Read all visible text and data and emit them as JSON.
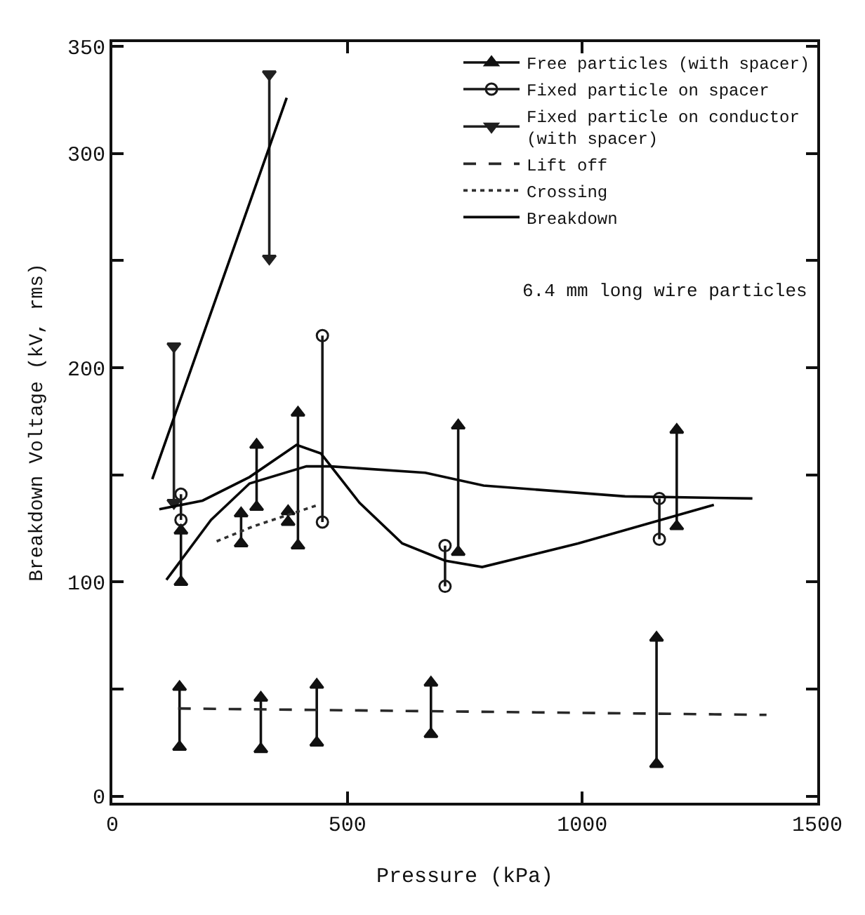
{
  "chart_data": {
    "type": "line",
    "xlabel": "Pressure (kPa)",
    "ylabel": "Breakdown Voltage (kV, rms)",
    "xlim": [
      0,
      1500
    ],
    "xticks": [
      0,
      500,
      1000,
      1500
    ],
    "ylim": [
      -3,
      352
    ],
    "yticks": [
      0,
      {
        "value": 50,
        "label": null
      },
      100,
      {
        "value": 150,
        "label": null
      },
      200,
      {
        "value": 250,
        "label": null
      },
      300,
      350
    ],
    "legend": "top right",
    "annotations": [
      "6.4 mm long wire particles"
    ],
    "series": [
      {
        "name": "Free particles (with spacer)",
        "color": "#111111",
        "marker": "triangle",
        "line_style": "solid",
        "x": [
          143,
          143,
          null,
          146,
          146,
          null,
          274,
          274,
          null,
          307,
          307,
          null,
          316,
          316,
          null,
          374,
          374,
          null,
          395,
          395,
          null,
          435,
          435,
          null,
          678,
          678,
          null,
          736,
          736,
          null,
          1158,
          1158,
          null,
          1201,
          1201
        ],
        "values": [
          23,
          51,
          null,
          100,
          124,
          null,
          118,
          132,
          null,
          135,
          164,
          null,
          22,
          46,
          null,
          128,
          133,
          null,
          117,
          179,
          null,
          25,
          52,
          null,
          29,
          53,
          null,
          114,
          173,
          null,
          15,
          74,
          null,
          126,
          171
        ]
      },
      {
        "name": "Fixed particle on spacer",
        "color": "#181818",
        "marker": "circle",
        "line_style": "solid",
        "x": [
          146,
          146,
          null,
          447,
          447,
          null,
          708,
          708,
          null,
          1164,
          1164
        ],
        "values": [
          129,
          141,
          null,
          128,
          215,
          null,
          98,
          117,
          null,
          120,
          139
        ]
      },
      {
        "name": "Fixed particle on conductor\n(with spacer)",
        "color": "#202020",
        "marker": "triangle-down",
        "line_style": "solid",
        "x": [
          131,
          131,
          null,
          334,
          334
        ],
        "values": [
          137,
          210,
          null,
          251,
          337
        ]
      },
      {
        "name": "Lift off",
        "color": "#282828",
        "marker": "none",
        "line_style": "dashed",
        "x": [
          140,
          1392
        ],
        "values": [
          41,
          38
        ]
      },
      {
        "name": "Crossing",
        "color": "#303030",
        "marker": "none",
        "line_style": "dotted",
        "x": [
          222,
          300,
          438
        ],
        "values": [
          119,
          126,
          136
        ]
      },
      {
        "name": "Breakdown",
        "color": "#0a0a0a",
        "marker": "none",
        "line_style": "solid",
        "x": [
          115,
          210,
          292,
          413,
          465,
          666,
          790,
          1091,
          1362
        ],
        "values": [
          101,
          129,
          146,
          154,
          154,
          151,
          145,
          140,
          139
        ]
      },
      {
        "color": "#050505",
        "marker": "none",
        "line_style": "solid",
        "x": [
          100,
          192,
          292,
          392,
          444,
          526,
          617,
          708,
          787,
          991,
          1280
        ],
        "values": [
          134,
          138,
          149,
          164,
          160,
          137,
          118,
          110,
          107,
          118,
          136
        ]
      },
      {
        "color": "#000000",
        "marker": "none",
        "line_style": "solid",
        "x": [
          85,
          371
        ],
        "values": [
          148,
          326
        ]
      }
    ]
  }
}
